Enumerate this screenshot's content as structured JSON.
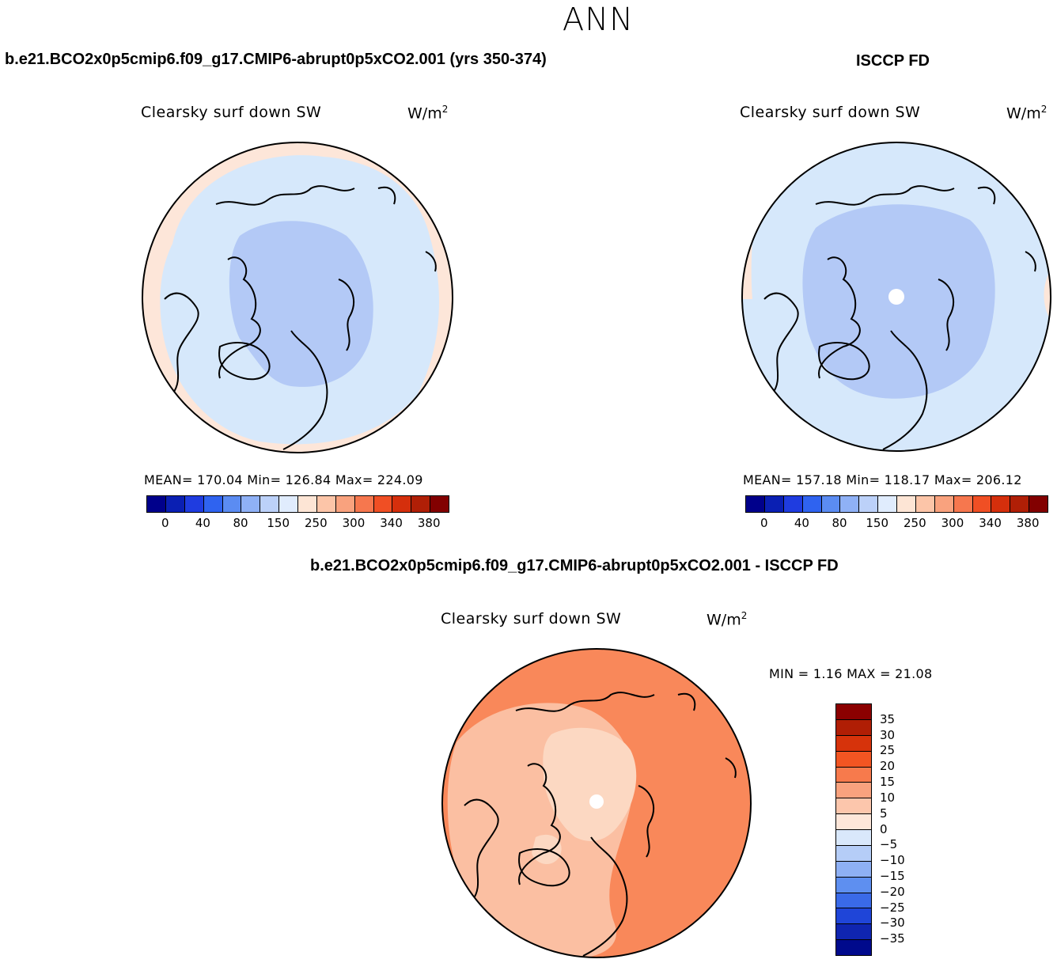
{
  "page_title": "ANN",
  "panels": [
    {
      "case_title": "b.e21.BCO2x0p5cmip6.f09_g17.CMIP6-abrupt0p5xCO2.001 (yrs 350-374)",
      "variable": "Clearsky surf down SW",
      "units_base": "W/m",
      "units_exp": "2",
      "stats_text": "MEAN= 170.04   Min= 126.84   Max= 224.09",
      "colors": {
        "outer": "#fde6d9",
        "mid": "#d6e8fb",
        "inner": "#b3c9f6"
      }
    },
    {
      "case_title": "ISCCP FD",
      "variable": "Clearsky surf down SW",
      "units_base": "W/m",
      "units_exp": "2",
      "stats_text": "MEAN= 157.18   Min= 118.17   Max= 206.12",
      "colors": {
        "outer": "#fde6d9",
        "mid": "#d6e8fb",
        "inner": "#b3c9f6"
      }
    }
  ],
  "colorbar_h": {
    "colors": [
      "#00008b",
      "#0a1fb3",
      "#1f3ce0",
      "#2f63f0",
      "#5b8cf2",
      "#8fb1f6",
      "#bcd1f9",
      "#e0ecfd",
      "#fde5d5",
      "#fcc5a8",
      "#f9a27e",
      "#f6774e",
      "#f04f24",
      "#d52f0c",
      "#b01f06",
      "#820000"
    ],
    "tick_labels": [
      "0",
      "40",
      "80",
      "150",
      "250",
      "300",
      "340",
      "380"
    ]
  },
  "diff_panel": {
    "case_title": "b.e21.BCO2x0p5cmip6.f09_g17.CMIP6-abrupt0p5xCO2.001 - ISCCP FD",
    "variable": "Clearsky surf down SW",
    "units_base": "W/m",
    "units_exp": "2",
    "minmax_text": "MIN =     1.16 MAX =   21.08",
    "colors": {
      "bg": "#f9885a",
      "light": "#fbbfa2",
      "lighter": "#fcd8c2",
      "pole": "#ffffff"
    }
  },
  "colorbar_v": {
    "colors": [
      "#8b0000",
      "#b01e05",
      "#d6330b",
      "#f25522",
      "#f77a4c",
      "#f9a27e",
      "#fcc6ac",
      "#fde6d9",
      "#d9e8fb",
      "#b5cdf7",
      "#8eb0f4",
      "#5e8ff0",
      "#3a6ae8",
      "#1f45d8",
      "#0f25b0",
      "#000a8c"
    ],
    "labels": [
      "35",
      "30",
      "25",
      "20",
      "15",
      "10",
      "5",
      "0",
      "−5",
      "−10",
      "−15",
      "−20",
      "−25",
      "−30",
      "−35"
    ]
  }
}
